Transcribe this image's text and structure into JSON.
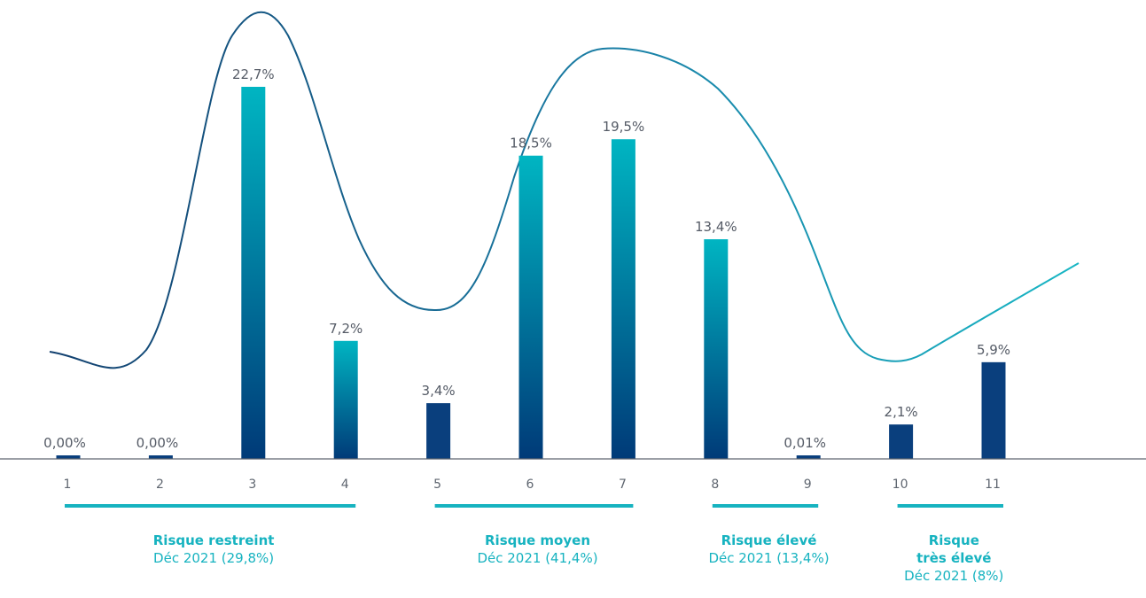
{
  "chart_data": {
    "type": "bar",
    "categories": [
      "1",
      "2",
      "3",
      "4",
      "5",
      "6",
      "7",
      "8",
      "9",
      "10",
      "11"
    ],
    "values": [
      0.0,
      0.0,
      22.7,
      7.2,
      3.4,
      18.5,
      19.5,
      13.4,
      0.01,
      2.1,
      5.9
    ],
    "value_labels": [
      "0,00%",
      "0,00%",
      "22,7%",
      "7,2%",
      "3,4%",
      "18,5%",
      "19,5%",
      "13,4%",
      "0,01%",
      "2,1%",
      "5,9%"
    ],
    "ylim": [
      0,
      24
    ],
    "grid": false,
    "colors": {
      "bar_top": "#00b5c2",
      "bar_bottom": "#003a78",
      "bar_dark": "#0a3f7d",
      "curve": "#1a7fa6",
      "group": "#17b3c0",
      "axis": "#5f6670"
    },
    "groups": [
      {
        "name_lines": [
          "Risque restreint"
        ],
        "subtitle": "Déc 2021 (29,8%)",
        "from": 1,
        "to": 4
      },
      {
        "name_lines": [
          "Risque moyen"
        ],
        "subtitle": "Déc 2021 (41,4%)",
        "from": 5,
        "to": 7
      },
      {
        "name_lines": [
          "Risque élevé"
        ],
        "subtitle": "Déc 2021 (13,4%)",
        "from": 8,
        "to": 9
      },
      {
        "name_lines": [
          "Risque",
          "très élevé"
        ],
        "subtitle": "Déc 2021 (8%)",
        "from": 10,
        "to": 11
      }
    ]
  }
}
